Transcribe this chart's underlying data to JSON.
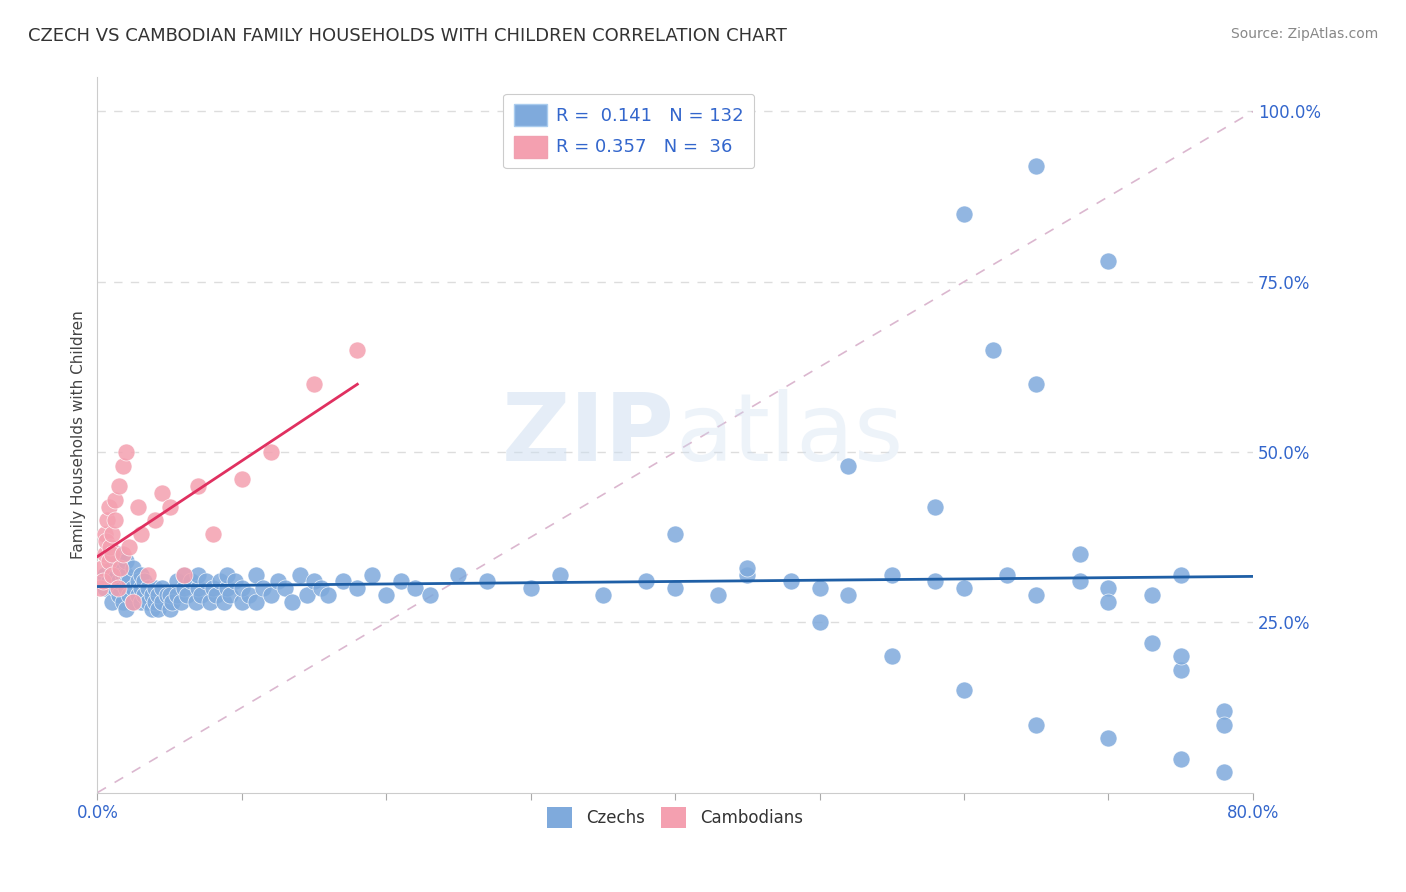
{
  "title": "CZECH VS CAMBODIAN FAMILY HOUSEHOLDS WITH CHILDREN CORRELATION CHART",
  "source": "Source: ZipAtlas.com",
  "ylabel": "Family Households with Children",
  "xlim": [
    0.0,
    0.8
  ],
  "ylim": [
    0.0,
    1.05
  ],
  "x_ticks": [
    0.0,
    0.1,
    0.2,
    0.3,
    0.4,
    0.5,
    0.6,
    0.7,
    0.8
  ],
  "x_tick_labels": [
    "0.0%",
    "",
    "",
    "",
    "",
    "",
    "",
    "",
    "80.0%"
  ],
  "y_ticks_right": [
    0.25,
    0.5,
    0.75,
    1.0
  ],
  "y_tick_labels_right": [
    "25.0%",
    "50.0%",
    "75.0%",
    "100.0%"
  ],
  "czech_color": "#7faadc",
  "cambodian_color": "#f4a0b0",
  "czech_line_color": "#1f5fa6",
  "cambodian_line_color": "#e03060",
  "czech_R": 0.141,
  "czech_N": 132,
  "cambodian_R": 0.357,
  "cambodian_N": 36,
  "czech_x": [
    0.005,
    0.005,
    0.008,
    0.01,
    0.01,
    0.01,
    0.01,
    0.012,
    0.012,
    0.015,
    0.015,
    0.015,
    0.015,
    0.018,
    0.018,
    0.02,
    0.02,
    0.02,
    0.02,
    0.022,
    0.022,
    0.025,
    0.025,
    0.025,
    0.028,
    0.028,
    0.03,
    0.03,
    0.03,
    0.032,
    0.032,
    0.035,
    0.035,
    0.038,
    0.038,
    0.04,
    0.04,
    0.042,
    0.042,
    0.045,
    0.045,
    0.048,
    0.05,
    0.05,
    0.052,
    0.055,
    0.055,
    0.058,
    0.06,
    0.06,
    0.062,
    0.065,
    0.068,
    0.07,
    0.07,
    0.072,
    0.075,
    0.078,
    0.08,
    0.082,
    0.085,
    0.088,
    0.09,
    0.09,
    0.092,
    0.095,
    0.1,
    0.1,
    0.105,
    0.11,
    0.11,
    0.115,
    0.12,
    0.125,
    0.13,
    0.135,
    0.14,
    0.145,
    0.15,
    0.155,
    0.16,
    0.17,
    0.18,
    0.19,
    0.2,
    0.21,
    0.22,
    0.23,
    0.25,
    0.27,
    0.3,
    0.32,
    0.35,
    0.38,
    0.4,
    0.43,
    0.45,
    0.48,
    0.5,
    0.52,
    0.55,
    0.58,
    0.6,
    0.63,
    0.65,
    0.68,
    0.7,
    0.73,
    0.75,
    0.52,
    0.58,
    0.62,
    0.65,
    0.68,
    0.7,
    0.73,
    0.75,
    0.78,
    0.6,
    0.65,
    0.7,
    0.75,
    0.78,
    0.4,
    0.45,
    0.5,
    0.55,
    0.6,
    0.65,
    0.7,
    0.75,
    0.78
  ],
  "czech_y": [
    0.3,
    0.32,
    0.31,
    0.28,
    0.31,
    0.33,
    0.35,
    0.3,
    0.32,
    0.29,
    0.31,
    0.33,
    0.35,
    0.28,
    0.32,
    0.27,
    0.3,
    0.32,
    0.34,
    0.29,
    0.31,
    0.28,
    0.3,
    0.33,
    0.29,
    0.31,
    0.28,
    0.3,
    0.32,
    0.29,
    0.31,
    0.28,
    0.3,
    0.27,
    0.29,
    0.28,
    0.3,
    0.27,
    0.29,
    0.28,
    0.3,
    0.29,
    0.27,
    0.29,
    0.28,
    0.31,
    0.29,
    0.28,
    0.3,
    0.32,
    0.29,
    0.31,
    0.28,
    0.3,
    0.32,
    0.29,
    0.31,
    0.28,
    0.3,
    0.29,
    0.31,
    0.28,
    0.3,
    0.32,
    0.29,
    0.31,
    0.28,
    0.3,
    0.29,
    0.32,
    0.28,
    0.3,
    0.29,
    0.31,
    0.3,
    0.28,
    0.32,
    0.29,
    0.31,
    0.3,
    0.29,
    0.31,
    0.3,
    0.32,
    0.29,
    0.31,
    0.3,
    0.29,
    0.32,
    0.31,
    0.3,
    0.32,
    0.29,
    0.31,
    0.3,
    0.29,
    0.32,
    0.31,
    0.3,
    0.29,
    0.32,
    0.31,
    0.3,
    0.32,
    0.29,
    0.31,
    0.3,
    0.29,
    0.32,
    0.48,
    0.42,
    0.65,
    0.6,
    0.35,
    0.28,
    0.22,
    0.18,
    0.12,
    0.85,
    0.92,
    0.78,
    0.2,
    0.1,
    0.38,
    0.33,
    0.25,
    0.2,
    0.15,
    0.1,
    0.08,
    0.05,
    0.03
  ],
  "cambodian_x": [
    0.002,
    0.003,
    0.004,
    0.005,
    0.005,
    0.006,
    0.007,
    0.008,
    0.008,
    0.009,
    0.01,
    0.01,
    0.01,
    0.012,
    0.012,
    0.014,
    0.015,
    0.016,
    0.018,
    0.018,
    0.02,
    0.022,
    0.025,
    0.028,
    0.03,
    0.035,
    0.04,
    0.045,
    0.05,
    0.06,
    0.07,
    0.08,
    0.1,
    0.12,
    0.15,
    0.18
  ],
  "cambodian_y": [
    0.3,
    0.33,
    0.31,
    0.35,
    0.38,
    0.37,
    0.4,
    0.34,
    0.42,
    0.36,
    0.32,
    0.35,
    0.38,
    0.4,
    0.43,
    0.3,
    0.45,
    0.33,
    0.35,
    0.48,
    0.5,
    0.36,
    0.28,
    0.42,
    0.38,
    0.32,
    0.4,
    0.44,
    0.42,
    0.32,
    0.45,
    0.38,
    0.46,
    0.5,
    0.6,
    0.65
  ],
  "ref_line_x": [
    0.0,
    0.8
  ],
  "ref_line_y": [
    0.0,
    1.0
  ],
  "watermark_top": "ZIP",
  "watermark_bottom": "atlas",
  "background_color": "#ffffff",
  "grid_color": "#dddddd",
  "title_fontsize": 13,
  "source_fontsize": 10,
  "tick_fontsize": 12,
  "legend_fontsize": 13
}
